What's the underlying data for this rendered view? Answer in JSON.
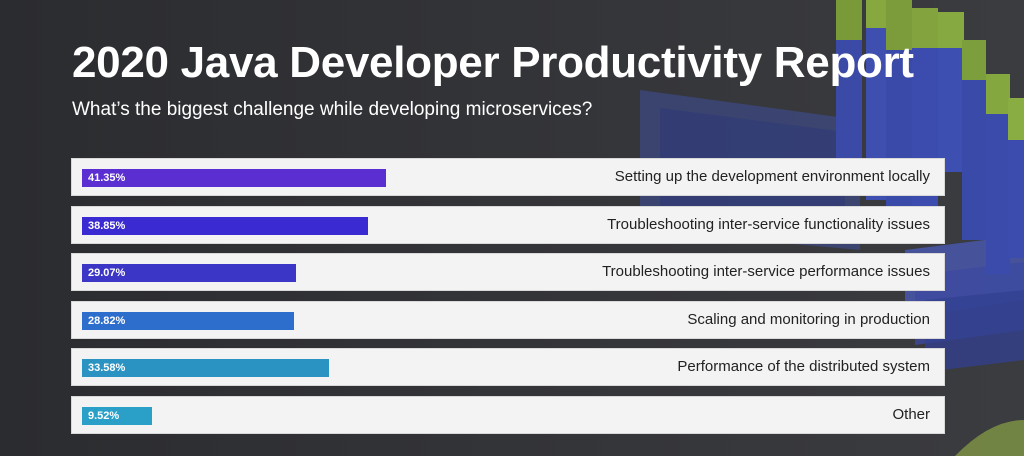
{
  "header": {
    "title": "2020 Java Developer Productivity Report",
    "subtitle": "What’s the biggest challenge while developing microservices?"
  },
  "colors": {
    "background": "#2f3033",
    "bar_colors": [
      "#5a2ed0",
      "#3a2ad2",
      "#3b36c6",
      "#2d6dcc",
      "#2a93c2",
      "#2aa0c8"
    ]
  },
  "chart_data": {
    "type": "bar",
    "orientation": "horizontal",
    "categories": [
      "Setting up the development environment locally",
      "Troubleshooting inter-service functionality issues",
      "Troubleshooting inter-service performance issues",
      "Scaling and monitoring in production",
      "Performance of the distributed system",
      "Other"
    ],
    "values": [
      41.35,
      38.85,
      29.07,
      28.82,
      33.58,
      9.52
    ],
    "value_labels": [
      "41.35%",
      "38.85%",
      "29.07%",
      "28.82%",
      "33.58%",
      "9.52%"
    ],
    "title": "2020 Java Developer Productivity Report",
    "subtitle": "What’s the biggest challenge while developing microservices?",
    "xlim": [
      0,
      100
    ],
    "grid": false,
    "legend": "none"
  }
}
